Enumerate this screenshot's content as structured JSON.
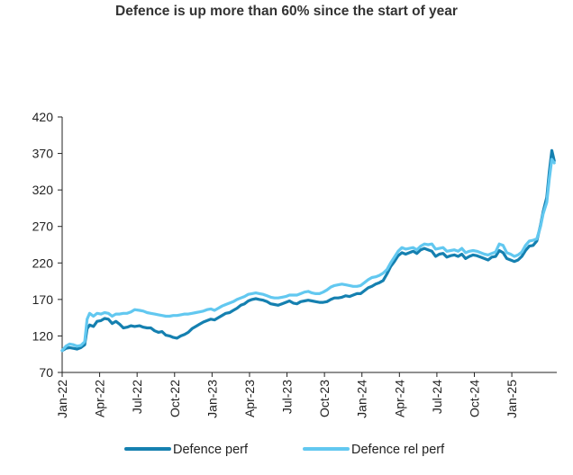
{
  "chart_data": {
    "type": "line",
    "title": "Defence is up more than 60% since the start of year",
    "xlabel": "",
    "ylabel": "",
    "ylim": [
      70,
      420
    ],
    "yticks": [
      70,
      120,
      170,
      220,
      270,
      320,
      370,
      420
    ],
    "xlim": [
      0,
      39.6
    ],
    "x_ticks": [
      {
        "label": "Jan-22",
        "pos": 0
      },
      {
        "label": "Apr-22",
        "pos": 3
      },
      {
        "label": "Jul-22",
        "pos": 6
      },
      {
        "label": "Oct-22",
        "pos": 9
      },
      {
        "label": "Jan-23",
        "pos": 12
      },
      {
        "label": "Apr-23",
        "pos": 15
      },
      {
        "label": "Jul-23",
        "pos": 18
      },
      {
        "label": "Oct-23",
        "pos": 21
      },
      {
        "label": "Jan-24",
        "pos": 24
      },
      {
        "label": "Apr-24",
        "pos": 27
      },
      {
        "label": "Jul-24",
        "pos": 30
      },
      {
        "label": "Oct-24",
        "pos": 33
      },
      {
        "label": "Jan-25",
        "pos": 36
      }
    ],
    "grid": false,
    "legend_position": "bottom",
    "series": [
      {
        "name": "Defence perf",
        "color": "#1580b0",
        "points": [
          [
            0,
            100
          ],
          [
            0.3,
            103
          ],
          [
            0.6,
            104
          ],
          [
            0.9,
            103
          ],
          [
            1.2,
            102
          ],
          [
            1.5,
            104
          ],
          [
            1.8,
            108
          ],
          [
            2.0,
            130
          ],
          [
            2.2,
            135
          ],
          [
            2.5,
            133
          ],
          [
            2.8,
            140
          ],
          [
            3.1,
            141
          ],
          [
            3.4,
            144
          ],
          [
            3.7,
            143
          ],
          [
            4.0,
            137
          ],
          [
            4.3,
            140
          ],
          [
            4.6,
            136
          ],
          [
            4.9,
            131
          ],
          [
            5.2,
            132
          ],
          [
            5.5,
            134
          ],
          [
            5.8,
            133
          ],
          [
            6.2,
            134
          ],
          [
            6.5,
            132
          ],
          [
            6.8,
            131
          ],
          [
            7.1,
            131
          ],
          [
            7.4,
            127
          ],
          [
            7.7,
            125
          ],
          [
            8.0,
            126
          ],
          [
            8.3,
            121
          ],
          [
            8.6,
            120
          ],
          [
            8.9,
            118
          ],
          [
            9.2,
            117
          ],
          [
            9.5,
            120
          ],
          [
            9.8,
            122
          ],
          [
            10.1,
            125
          ],
          [
            10.4,
            130
          ],
          [
            10.7,
            133
          ],
          [
            11.0,
            136
          ],
          [
            11.3,
            139
          ],
          [
            11.6,
            141
          ],
          [
            11.9,
            143
          ],
          [
            12.2,
            142
          ],
          [
            12.5,
            145
          ],
          [
            12.8,
            148
          ],
          [
            13.1,
            151
          ],
          [
            13.4,
            152
          ],
          [
            13.7,
            155
          ],
          [
            14.0,
            158
          ],
          [
            14.3,
            162
          ],
          [
            14.6,
            164
          ],
          [
            14.9,
            168
          ],
          [
            15.2,
            170
          ],
          [
            15.5,
            171
          ],
          [
            15.8,
            170
          ],
          [
            16.1,
            169
          ],
          [
            16.4,
            167
          ],
          [
            16.7,
            164
          ],
          [
            17.0,
            163
          ],
          [
            17.3,
            162
          ],
          [
            17.6,
            164
          ],
          [
            17.9,
            166
          ],
          [
            18.2,
            168
          ],
          [
            18.5,
            165
          ],
          [
            18.8,
            164
          ],
          [
            19.1,
            167
          ],
          [
            19.4,
            168
          ],
          [
            19.7,
            169
          ],
          [
            20.0,
            168
          ],
          [
            20.3,
            167
          ],
          [
            20.6,
            166
          ],
          [
            20.9,
            166
          ],
          [
            21.2,
            167
          ],
          [
            21.5,
            170
          ],
          [
            21.8,
            172
          ],
          [
            22.1,
            172
          ],
          [
            22.4,
            173
          ],
          [
            22.7,
            175
          ],
          [
            23.0,
            174
          ],
          [
            23.3,
            176
          ],
          [
            23.6,
            178
          ],
          [
            23.9,
            178
          ],
          [
            24.2,
            182
          ],
          [
            24.5,
            186
          ],
          [
            24.8,
            188
          ],
          [
            25.1,
            191
          ],
          [
            25.4,
            193
          ],
          [
            25.7,
            196
          ],
          [
            26.0,
            205
          ],
          [
            26.3,
            215
          ],
          [
            26.6,
            222
          ],
          [
            26.9,
            230
          ],
          [
            27.2,
            234
          ],
          [
            27.5,
            232
          ],
          [
            27.8,
            234
          ],
          [
            28.1,
            236
          ],
          [
            28.4,
            233
          ],
          [
            28.7,
            238
          ],
          [
            29.0,
            240
          ],
          [
            29.3,
            238
          ],
          [
            29.6,
            236
          ],
          [
            29.9,
            229
          ],
          [
            30.2,
            232
          ],
          [
            30.5,
            233
          ],
          [
            30.8,
            228
          ],
          [
            31.1,
            230
          ],
          [
            31.4,
            231
          ],
          [
            31.7,
            229
          ],
          [
            32.0,
            232
          ],
          [
            32.3,
            226
          ],
          [
            32.6,
            229
          ],
          [
            32.9,
            231
          ],
          [
            33.2,
            230
          ],
          [
            33.5,
            228
          ],
          [
            33.8,
            226
          ],
          [
            34.1,
            224
          ],
          [
            34.4,
            228
          ],
          [
            34.7,
            229
          ],
          [
            35.0,
            237
          ],
          [
            35.3,
            234
          ],
          [
            35.6,
            226
          ],
          [
            35.9,
            224
          ],
          [
            36.2,
            222
          ],
          [
            36.5,
            224
          ],
          [
            36.8,
            229
          ],
          [
            37.1,
            237
          ],
          [
            37.4,
            243
          ],
          [
            37.7,
            244
          ],
          [
            38.0,
            250
          ],
          [
            38.3,
            272
          ],
          [
            38.5,
            290
          ],
          [
            38.8,
            310
          ],
          [
            39.0,
            345
          ],
          [
            39.2,
            374
          ],
          [
            39.4,
            360
          ]
        ]
      },
      {
        "name": "Defence rel perf",
        "color": "#62c8f0",
        "points": [
          [
            0,
            100
          ],
          [
            0.3,
            106
          ],
          [
            0.6,
            109
          ],
          [
            0.9,
            108
          ],
          [
            1.2,
            106
          ],
          [
            1.5,
            107
          ],
          [
            1.8,
            112
          ],
          [
            2.0,
            143
          ],
          [
            2.2,
            151
          ],
          [
            2.5,
            147
          ],
          [
            2.8,
            151
          ],
          [
            3.1,
            150
          ],
          [
            3.4,
            152
          ],
          [
            3.7,
            151
          ],
          [
            4.0,
            147
          ],
          [
            4.3,
            150
          ],
          [
            4.6,
            150
          ],
          [
            4.9,
            151
          ],
          [
            5.2,
            151
          ],
          [
            5.5,
            153
          ],
          [
            5.8,
            156
          ],
          [
            6.2,
            155
          ],
          [
            6.5,
            154
          ],
          [
            6.8,
            152
          ],
          [
            7.1,
            151
          ],
          [
            7.4,
            150
          ],
          [
            7.7,
            149
          ],
          [
            8.0,
            148
          ],
          [
            8.3,
            147
          ],
          [
            8.6,
            147
          ],
          [
            8.9,
            148
          ],
          [
            9.2,
            148
          ],
          [
            9.5,
            149
          ],
          [
            9.8,
            150
          ],
          [
            10.1,
            150
          ],
          [
            10.4,
            151
          ],
          [
            10.7,
            152
          ],
          [
            11.0,
            153
          ],
          [
            11.3,
            154
          ],
          [
            11.6,
            156
          ],
          [
            11.9,
            157
          ],
          [
            12.2,
            155
          ],
          [
            12.5,
            158
          ],
          [
            12.8,
            161
          ],
          [
            13.1,
            163
          ],
          [
            13.4,
            165
          ],
          [
            13.7,
            167
          ],
          [
            14.0,
            170
          ],
          [
            14.3,
            172
          ],
          [
            14.6,
            174
          ],
          [
            14.9,
            177
          ],
          [
            15.2,
            178
          ],
          [
            15.5,
            179
          ],
          [
            15.8,
            178
          ],
          [
            16.1,
            177
          ],
          [
            16.4,
            175
          ],
          [
            16.7,
            173
          ],
          [
            17.0,
            172
          ],
          [
            17.3,
            172
          ],
          [
            17.6,
            173
          ],
          [
            17.9,
            174
          ],
          [
            18.2,
            176
          ],
          [
            18.5,
            176
          ],
          [
            18.8,
            176
          ],
          [
            19.1,
            178
          ],
          [
            19.4,
            180
          ],
          [
            19.7,
            181
          ],
          [
            20.0,
            179
          ],
          [
            20.3,
            178
          ],
          [
            20.6,
            178
          ],
          [
            20.9,
            180
          ],
          [
            21.2,
            183
          ],
          [
            21.5,
            187
          ],
          [
            21.8,
            189
          ],
          [
            22.1,
            190
          ],
          [
            22.4,
            191
          ],
          [
            22.7,
            190
          ],
          [
            23.0,
            189
          ],
          [
            23.3,
            188
          ],
          [
            23.6,
            188
          ],
          [
            23.9,
            189
          ],
          [
            24.2,
            193
          ],
          [
            24.5,
            197
          ],
          [
            24.8,
            200
          ],
          [
            25.1,
            201
          ],
          [
            25.4,
            203
          ],
          [
            25.7,
            206
          ],
          [
            26.0,
            211
          ],
          [
            26.3,
            220
          ],
          [
            26.6,
            228
          ],
          [
            26.9,
            236
          ],
          [
            27.2,
            241
          ],
          [
            27.5,
            239
          ],
          [
            27.8,
            240
          ],
          [
            28.1,
            241
          ],
          [
            28.4,
            238
          ],
          [
            28.7,
            243
          ],
          [
            29.0,
            246
          ],
          [
            29.3,
            245
          ],
          [
            29.6,
            246
          ],
          [
            29.9,
            239
          ],
          [
            30.2,
            240
          ],
          [
            30.5,
            241
          ],
          [
            30.8,
            236
          ],
          [
            31.1,
            237
          ],
          [
            31.4,
            238
          ],
          [
            31.7,
            236
          ],
          [
            32.0,
            240
          ],
          [
            32.3,
            234
          ],
          [
            32.6,
            236
          ],
          [
            32.9,
            237
          ],
          [
            33.2,
            236
          ],
          [
            33.5,
            234
          ],
          [
            33.8,
            232
          ],
          [
            34.1,
            231
          ],
          [
            34.4,
            233
          ],
          [
            34.7,
            235
          ],
          [
            35.0,
            246
          ],
          [
            35.3,
            244
          ],
          [
            35.6,
            234
          ],
          [
            35.9,
            232
          ],
          [
            36.2,
            229
          ],
          [
            36.5,
            231
          ],
          [
            36.8,
            235
          ],
          [
            37.1,
            244
          ],
          [
            37.4,
            250
          ],
          [
            37.7,
            251
          ],
          [
            38.0,
            253
          ],
          [
            38.3,
            270
          ],
          [
            38.5,
            287
          ],
          [
            38.8,
            303
          ],
          [
            39.0,
            335
          ],
          [
            39.2,
            362
          ],
          [
            39.4,
            357
          ]
        ]
      }
    ]
  }
}
